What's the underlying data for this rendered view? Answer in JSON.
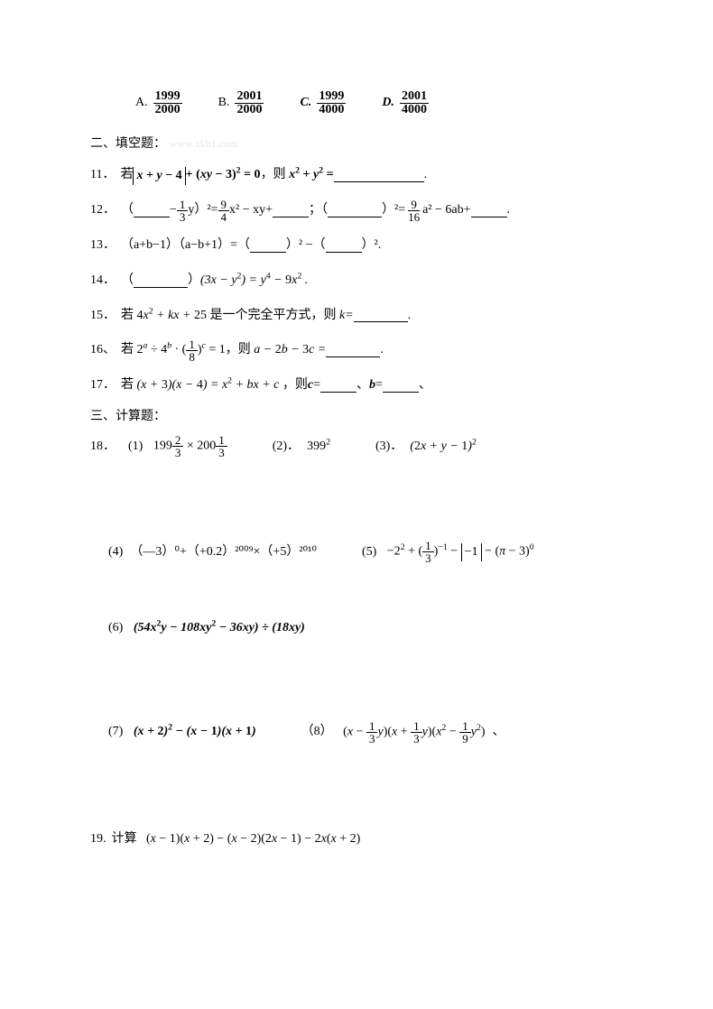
{
  "q10": {
    "A": {
      "label": "A.",
      "num": "1999",
      "den": "2000"
    },
    "B": {
      "label": "B.",
      "num": "2001",
      "den": "2000"
    },
    "C": {
      "label": "C.",
      "num": "1999",
      "den": "4000"
    },
    "D": {
      "label": "D.",
      "num": "2001",
      "den": "4000"
    }
  },
  "section2": {
    "title": "二、填空题：",
    "watermark": "www.xkb1.com"
  },
  "q11": {
    "num": "11．",
    "pre": "若",
    "mid": "，则",
    "dot": "."
  },
  "q12": {
    "num": "12．",
    "p1a": "（",
    "p1b": "−",
    "p1c": " y）",
    "p1d": "²=",
    "p1e": " x² − xy+",
    "p1f": "；（",
    "p1g": "）",
    "p1h": "²=",
    "p1i": " a² − 6ab+",
    "p1j": "."
  },
  "q13": {
    "num": "13．",
    "text1": "（a+b−1）（a−b+1）=（",
    "text2": "）² −（",
    "text3": "）²."
  },
  "q14": {
    "num": "14．",
    "p1": "（",
    "p2": "）"
  },
  "q15": {
    "num": "15．",
    "p1": "若",
    "p2": "是一个完全平方式，则",
    "p3": "k=",
    "p4": "."
  },
  "q16": {
    "num": "16、",
    "p1": "若",
    "p2": "，则",
    "p3": "."
  },
  "q17": {
    "num": "17．",
    "p1": "若",
    "p2": "，则",
    "c": "c",
    "eq1": "=",
    "sep": "、",
    "b": "b",
    "eq2": "=",
    "tail": "、"
  },
  "section3": {
    "title": "三、计算题："
  },
  "q18": {
    "num": "18．",
    "p1": "(1)",
    "p2": "(2)．",
    "p3": "(3)．",
    "p4": "(4)",
    "p5": "(5)",
    "p6": "(6)",
    "p7": "(7)",
    "p8": "（8）",
    "e4": "（—3）⁰+（+0.2）²⁰⁰⁹×（+5）²⁰¹⁰",
    "tail8": "、"
  },
  "q19": {
    "num": "19.",
    "label": "计算"
  },
  "colors": {
    "text": "#000000",
    "background": "#ffffff",
    "watermark": "#e8e8e8"
  }
}
